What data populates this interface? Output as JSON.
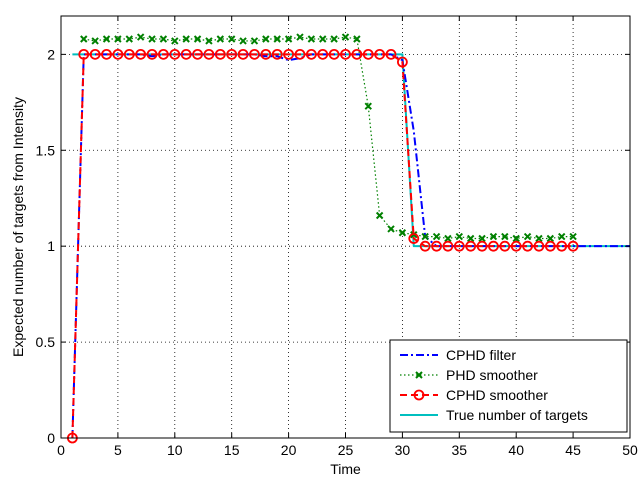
{
  "chart_data": {
    "type": "line",
    "xlabel": "Time",
    "ylabel": "Expected number of targets from Intensity",
    "xlim": [
      0,
      50
    ],
    "ylim": [
      0,
      2.2
    ],
    "xticks": [
      0,
      5,
      10,
      15,
      20,
      25,
      30,
      35,
      40,
      45,
      50
    ],
    "yticks": [
      0,
      0.5,
      1,
      1.5,
      2
    ],
    "ytick_labels": [
      "0",
      "0.5",
      "1",
      "1.5",
      "2"
    ],
    "grid": true,
    "legend_position": "bottom-right",
    "series": [
      {
        "name": "CPHD filter",
        "style": "dash-dot",
        "color": "#0000ff",
        "x": [
          1,
          2,
          3,
          4,
          5,
          6,
          7,
          8,
          9,
          10,
          11,
          12,
          13,
          14,
          15,
          16,
          17,
          18,
          19,
          20,
          21,
          22,
          23,
          24,
          25,
          26,
          27,
          28,
          29,
          30,
          31,
          32,
          33,
          34,
          35,
          36,
          37,
          38,
          39,
          40,
          41,
          42,
          43,
          44,
          45,
          46,
          47,
          48,
          49,
          50
        ],
        "y": [
          0,
          2,
          2,
          2,
          2,
          2,
          2,
          1.99,
          2,
          2,
          2,
          2,
          2,
          2,
          2,
          2,
          2,
          1.99,
          1.99,
          1.97,
          1.98,
          2,
          2,
          2,
          2,
          2,
          2,
          2,
          2,
          1.97,
          1.6,
          1.05,
          1,
          1,
          1,
          1,
          1,
          1,
          1,
          1,
          1,
          1,
          1,
          1,
          1,
          1,
          1,
          1,
          1,
          1
        ]
      },
      {
        "name": "PHD smoother",
        "style": "dotted-x",
        "color": "#008000",
        "x": [
          2,
          3,
          4,
          5,
          6,
          7,
          8,
          9,
          10,
          11,
          12,
          13,
          14,
          15,
          16,
          17,
          18,
          19,
          20,
          21,
          22,
          23,
          24,
          25,
          26,
          27,
          28,
          29,
          30,
          31,
          32,
          33,
          34,
          35,
          36,
          37,
          38,
          39,
          40,
          41,
          42,
          43,
          44,
          45
        ],
        "y": [
          2.08,
          2.07,
          2.08,
          2.08,
          2.08,
          2.09,
          2.08,
          2.08,
          2.07,
          2.08,
          2.08,
          2.07,
          2.08,
          2.08,
          2.07,
          2.07,
          2.08,
          2.08,
          2.08,
          2.09,
          2.08,
          2.08,
          2.08,
          2.09,
          2.08,
          1.73,
          1.16,
          1.09,
          1.07,
          1.06,
          1.05,
          1.05,
          1.04,
          1.05,
          1.04,
          1.04,
          1.05,
          1.05,
          1.04,
          1.05,
          1.04,
          1.04,
          1.05,
          1.05
        ]
      },
      {
        "name": "CPHD smoother",
        "style": "dashed-o",
        "color": "#ff0000",
        "x": [
          1,
          2,
          3,
          4,
          5,
          6,
          7,
          8,
          9,
          10,
          11,
          12,
          13,
          14,
          15,
          16,
          17,
          18,
          19,
          20,
          21,
          22,
          23,
          24,
          25,
          26,
          27,
          28,
          29,
          30,
          31,
          32,
          33,
          34,
          35,
          36,
          37,
          38,
          39,
          40,
          41,
          42,
          43,
          44,
          45
        ],
        "y": [
          0,
          2,
          2,
          2,
          2,
          2,
          2,
          2,
          2,
          2,
          2,
          2,
          2,
          2,
          2,
          2,
          2,
          2,
          2,
          2,
          2,
          2,
          2,
          2,
          2,
          2,
          2,
          2,
          2,
          1.96,
          1.04,
          1,
          1,
          1,
          1,
          1,
          1,
          1,
          1,
          1,
          1,
          1,
          1,
          1,
          1
        ]
      },
      {
        "name": "True number of targets",
        "style": "solid",
        "color": "#00bfbf",
        "x": [
          1,
          2,
          30,
          31,
          50
        ],
        "y": [
          2,
          2,
          2,
          1,
          1
        ]
      }
    ]
  }
}
